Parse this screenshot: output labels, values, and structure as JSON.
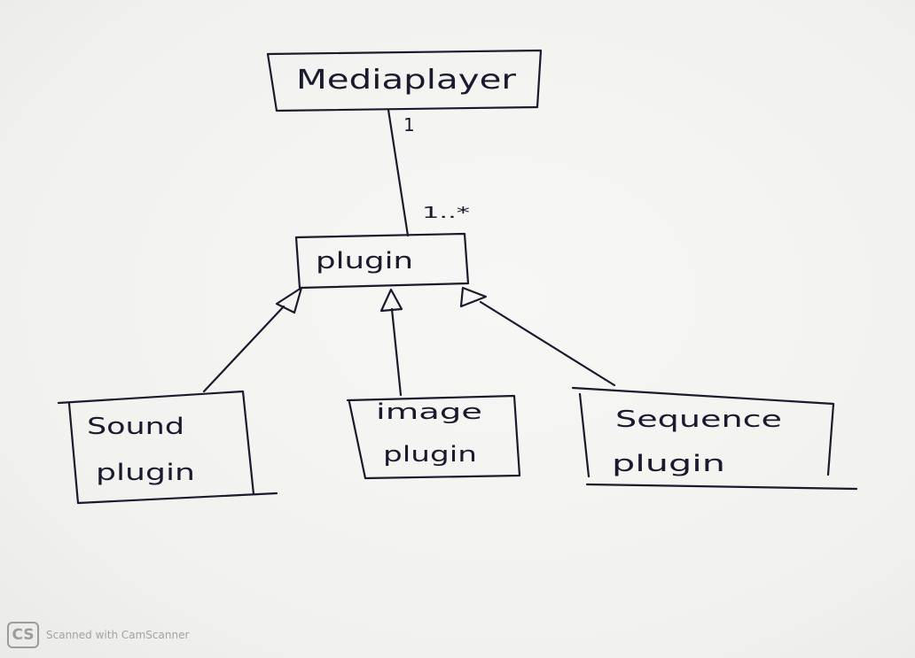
{
  "diagram": {
    "classes": {
      "mediaplayer": "Mediaplayer",
      "plugin": "plugin",
      "sound_line1": "Sound",
      "sound_line2": "plugin",
      "image_line1": "image",
      "image_line2": "plugin",
      "sequence_line1": "Sequence",
      "sequence_line2": "plugin"
    },
    "association": {
      "upper_multiplicity": "1",
      "lower_multiplicity": "1..*"
    },
    "ink_color": "#1a1a2e"
  },
  "watermark": {
    "logo": "CS",
    "text": "Scanned with CamScanner"
  }
}
